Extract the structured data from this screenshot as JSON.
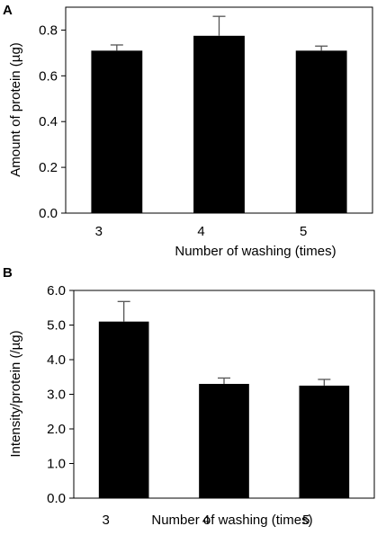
{
  "chart_data": [
    {
      "type": "bar",
      "panel_label": "A",
      "categories": [
        "3",
        "4",
        "5"
      ],
      "values": [
        0.71,
        0.775,
        0.71
      ],
      "errors": [
        0.025,
        0.085,
        0.02
      ],
      "xlabel": "Number of washing (times)",
      "ylabel": "Amount of protein (µg)",
      "ylim": [
        0,
        0.9
      ],
      "yticks": [
        "0.0",
        "0.2",
        "0.4",
        "0.6",
        "0.8"
      ],
      "bar_color": "#000000",
      "grid": false
    },
    {
      "type": "bar",
      "panel_label": "B",
      "categories": [
        "3",
        "4",
        "5"
      ],
      "values": [
        5.1,
        3.3,
        3.25
      ],
      "errors": [
        0.58,
        0.17,
        0.18
      ],
      "xlabel": "Number of washing (times)",
      "ylabel": "Intensity/protein (/µg)",
      "ylim": [
        0,
        6.0
      ],
      "yticks": [
        "0.0",
        "1.0",
        "2.0",
        "3.0",
        "4.0",
        "5.0",
        "6.0"
      ],
      "bar_color": "#000000",
      "grid": false
    }
  ]
}
